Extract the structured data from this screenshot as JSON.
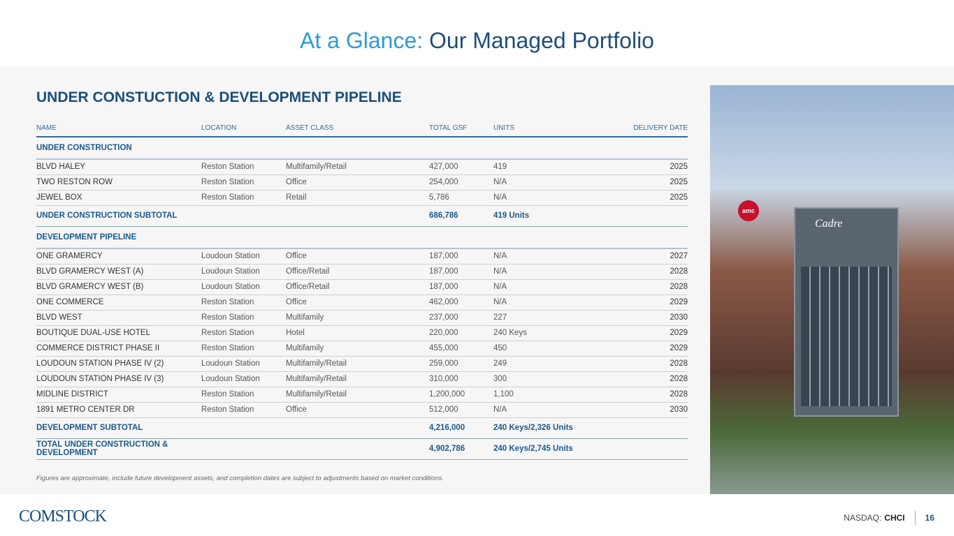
{
  "title": {
    "accent": "At a Glance:",
    "main": "Our Managed Portfolio"
  },
  "heading": "UNDER CONSTUCTION & DEVELOPMENT PIPELINE",
  "columns": [
    "NAME",
    "LOCATION",
    "ASSET CLASS",
    "TOTAL GSF",
    "UNITS",
    "DELIVERY DATE"
  ],
  "under_construction": {
    "label": "UNDER CONSTRUCTION",
    "rows": [
      [
        "BLVD HALEY",
        "Reston Station",
        "Multifamily/Retail",
        "427,000",
        "419",
        "2025"
      ],
      [
        "TWO RESTON ROW",
        "Reston Station",
        "Office",
        "254,000",
        "N/A",
        "2025"
      ],
      [
        "JEWEL BOX",
        "Reston Station",
        "Retail",
        "5,786",
        "N/A",
        "2025"
      ]
    ],
    "subtotal": {
      "label": "UNDER CONSTRUCTION SUBTOTAL",
      "gsf": "686,786",
      "units": "419 Units"
    }
  },
  "pipeline": {
    "label": "DEVELOPMENT PIPELINE",
    "rows": [
      [
        "ONE GRAMERCY",
        "Loudoun Station",
        "Office",
        "187,000",
        "N/A",
        "2027"
      ],
      [
        "BLVD GRAMERCY WEST (A)",
        "Loudoun Station",
        "Office/Retail",
        "187,000",
        "N/A",
        "2028"
      ],
      [
        "BLVD GRAMERCY WEST (B)",
        "Loudoun Station",
        "Office/Retail",
        "187,000",
        "N/A",
        "2028"
      ],
      [
        "ONE COMMERCE",
        "Reston Station",
        "Office",
        "462,000",
        "N/A",
        "2029"
      ],
      [
        "BLVD WEST",
        "Reston Station",
        "Multifamily",
        "237,000",
        "227",
        "2030"
      ],
      [
        "BOUTIQUE DUAL-USE HOTEL",
        "Reston Station",
        "Hotel",
        "220,000",
        "240 Keys",
        "2029"
      ],
      [
        "COMMERCE DISTRICT PHASE II",
        "Reston Station",
        "Multifamily",
        "455,000",
        "450",
        "2029"
      ],
      [
        "LOUDOUN STATION PHASE IV (2)",
        "Loudoun Station",
        "Multifamily/Retail",
        "259,000",
        "249",
        "2028"
      ],
      [
        "LOUDOUN STATION PHASE IV (3)",
        "Loudoun Station",
        "Multifamily/Retail",
        "310,000",
        "300",
        "2028"
      ],
      [
        "MIDLINE DISTRICT",
        "Reston Station",
        "Multifamily/Retail",
        "1,200,000",
        "1,100",
        "2028"
      ],
      [
        "1891 METRO CENTER DR",
        "Reston Station",
        "Office",
        "512,000",
        "N/A",
        "2030"
      ]
    ],
    "subtotal": {
      "label": "DEVELOPMENT SUBTOTAL",
      "gsf": "4,216,000",
      "units": "240 Keys/2,326 Units"
    }
  },
  "total": {
    "label": "TOTAL UNDER CONSTRUCTION & DEVELOPMENT",
    "gsf": "4,902,786",
    "units": "240 Keys/2,745 Units"
  },
  "note": "Figures are approximate, include future development assets, and completion dates are subject to adjustments based on market conditions.",
  "photo": {
    "sign1": "amc",
    "sign2": "Cadre"
  },
  "footer": {
    "logo": "COMSTOCK",
    "exchange": "NASDAQ:",
    "ticker": "CHCI",
    "page": "16"
  }
}
